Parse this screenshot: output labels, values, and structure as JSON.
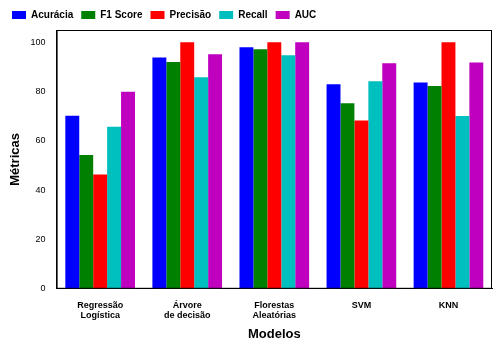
{
  "chart_data": {
    "type": "bar",
    "x_label": "Modelos",
    "y_label": "Métricas",
    "categories": [
      "Regressão Logística",
      "Árvore de decisão",
      "Florestas Aleatórias",
      "SVM",
      "KNN"
    ],
    "series": [
      {
        "name": "Acurácia",
        "color": "#0000ff",
        "values": [
          70.2,
          93.8,
          98.0,
          83.0,
          83.7
        ]
      },
      {
        "name": "F1 Score",
        "color": "#008000",
        "values": [
          54.3,
          92.0,
          97.2,
          75.3,
          82.3
        ]
      },
      {
        "name": "Precisão",
        "color": "#ff0000",
        "values": [
          46.4,
          100.0,
          100.0,
          68.3,
          100.0
        ]
      },
      {
        "name": "Recall",
        "color": "#00bfbf",
        "values": [
          65.7,
          85.8,
          94.8,
          84.2,
          70.1
        ]
      },
      {
        "name": "AUC",
        "color": "#bf00bf",
        "values": [
          79.9,
          95.2,
          100.0,
          91.5,
          91.8
        ]
      }
    ],
    "ylim": [
      0,
      105
    ],
    "yticks": [
      0,
      20,
      40,
      60,
      80,
      100
    ],
    "grid": false,
    "legend": "upper left"
  }
}
